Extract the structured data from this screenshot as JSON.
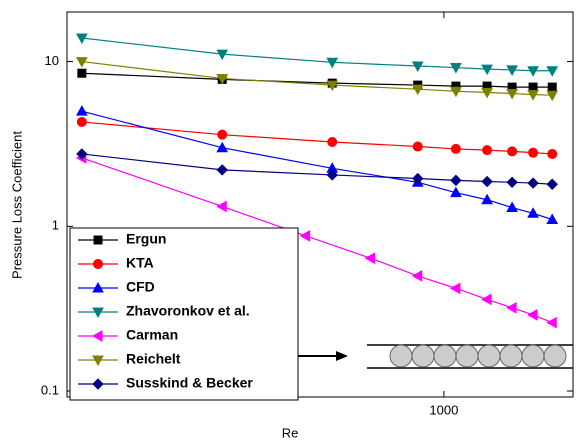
{
  "chart_data": {
    "type": "line",
    "x_label": "Re",
    "y_label": "Pressure Loss Coefficient",
    "x_scale": "log",
    "y_scale": "log",
    "xlim": [
      110,
      2130
    ],
    "ylim": [
      0.092,
      20
    ],
    "xticks": [
      1000
    ],
    "yticks": [
      0.1,
      1,
      10
    ],
    "legend": "lower left",
    "x": [
      120,
      273,
      520,
      858,
      1073,
      1288,
      1491,
      1686,
      1886
    ],
    "series": [
      {
        "name": "Ergun",
        "color": "#000000",
        "marker": "square",
        "values": [
          8.5,
          7.8,
          7.4,
          7.2,
          7.1,
          7.1,
          7.0,
          7.0,
          7.0
        ]
      },
      {
        "name": "KTA",
        "color": "#ff0000",
        "marker": "circle",
        "values": [
          4.3,
          3.6,
          3.25,
          3.05,
          2.95,
          2.9,
          2.85,
          2.8,
          2.75
        ]
      },
      {
        "name": "CFD",
        "color": "#0000ff",
        "marker": "triangle-up",
        "values": [
          5.0,
          3.0,
          2.25,
          1.85,
          1.6,
          1.45,
          1.3,
          1.2,
          1.1
        ]
      },
      {
        "name": "Zhavoronkov et al.",
        "color": "#008080",
        "marker": "triangle-down",
        "values": [
          13.9,
          11.1,
          9.9,
          9.4,
          9.2,
          9.0,
          8.9,
          8.8,
          8.8
        ]
      },
      {
        "name": "Carman",
        "color": "#ff00ff",
        "marker": "triangle-left",
        "x": [
          120,
          273,
          445,
          651,
          858,
          1073,
          1288,
          1491,
          1686,
          1886
        ],
        "values": [
          2.6,
          1.32,
          0.875,
          0.64,
          0.5,
          0.42,
          0.36,
          0.32,
          0.29,
          0.26
        ]
      },
      {
        "name": "Reichelt",
        "color": "#808000",
        "marker": "triangle-down",
        "values": [
          10,
          7.9,
          7.2,
          6.8,
          6.6,
          6.5,
          6.4,
          6.3,
          6.25
        ]
      },
      {
        "name": "Susskind & Becker",
        "color": "#000080",
        "marker": "diamond",
        "values": [
          2.75,
          2.2,
          2.05,
          1.95,
          1.9,
          1.87,
          1.85,
          1.83,
          1.8
        ]
      }
    ]
  }
}
